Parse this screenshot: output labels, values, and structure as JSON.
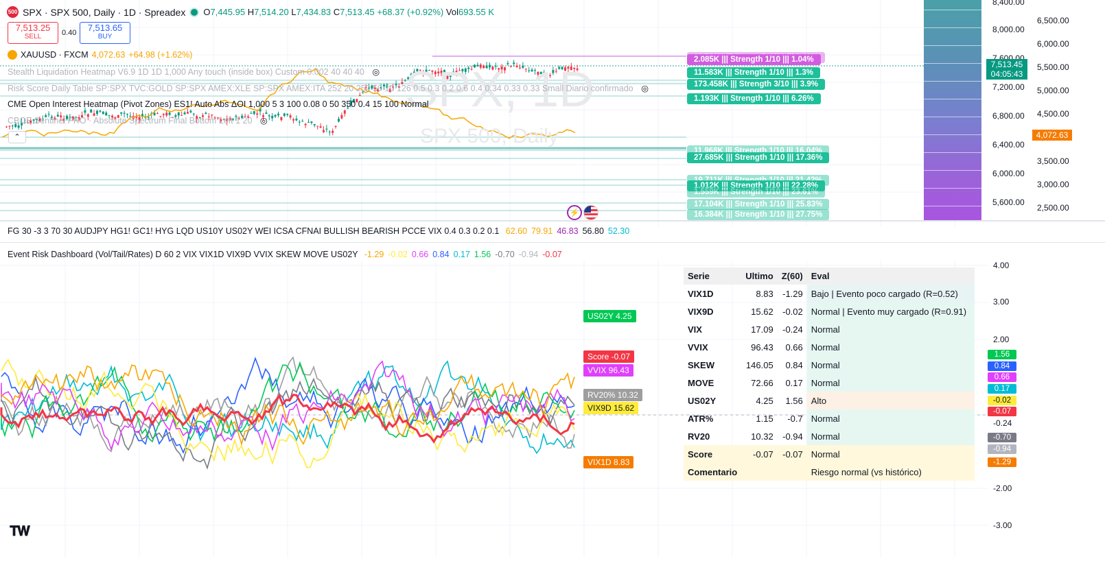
{
  "symbol": {
    "logo": "500",
    "title": "SPX · SPX 500, Daily · 1D · Spreadex",
    "ohlc": {
      "o_label": "O",
      "o": "7,445.95",
      "h_label": "H",
      "h": "7,514.20",
      "l_label": "L",
      "l": "7,434.83",
      "c_label": "C",
      "c": "7,513.45",
      "change": "+68.37 (+0.92%)",
      "vol_label": "Vol",
      "vol": "693.55 K"
    },
    "sell": {
      "price": "7,513.25",
      "label": "SELL"
    },
    "spread": "0.40",
    "buy": {
      "price": "7,513.65",
      "label": "BUY"
    }
  },
  "compare": {
    "name": "XAUUSD · FXCM",
    "value": "4,072.63",
    "change": "+64.98 (+1.62%)"
  },
  "indicators": [
    "Stealth Liquidation Heatmap V6.9 1D 1D 1,000 Any touch (inside box) Custom 0.002 40 40 40",
    "Risk Score Daily Table SP:SPX TVC:GOLD SP:SPX AMEX:XLE SP:SPX AMEX:ITA 252 20 252 50 10 126 0.5 0.3 0.2 0.6 0.4 0.34 0.33 0.33 Small Diario confirmado",
    "CME Open Interest Heatmap (Pivot Zones) ES1! Auto Abs ΔOI 1,000 5 3 100 0.08 0 50 350 0.4 15 100 Normal",
    "CBOE Sentinel PRO · Absolute Spectrum Final Bottom Left 1 20"
  ],
  "watermark": {
    "big": "SPX, 1D",
    "small": "SPX 500, Daily"
  },
  "oi_boxes": [
    {
      "text": "13.726K  |||  Strength 1/10  |||  1.48%",
      "color": "#d25ce0",
      "faded": true
    },
    {
      "text": "2.085K  |||  Strength 1/10  |||  1.04%",
      "color": "#d25ce0",
      "faded": false
    },
    {
      "text": "11.583K  |||  Strength 1/10  |||  1.3%",
      "color": "#1fbf9a",
      "faded": false
    },
    {
      "text": "173.458K  |||  Strength 3/10  |||  3.9%",
      "color": "#1fbf9a",
      "faded": false
    },
    {
      "text": "1.193K  |||  Strength 1/10  |||  6.26%",
      "color": "#1fbf9a",
      "faded": false
    },
    {
      "text": "11.968K  |||  Strength 1/10  |||  16.04%",
      "color": "#1fbf9a",
      "faded": true
    },
    {
      "text": "27.685K  |||  Strength 1/10  |||  17.36%",
      "color": "#1fbf9a",
      "faded": false
    },
    {
      "text": "19.711K  |||  Strength 1/10  |||  21.42%",
      "color": "#1fbf9a",
      "faded": true
    },
    {
      "text": "1.012K  |||  Strength 1/10  |||  22.28%",
      "color": "#1fbf9a",
      "faded": false
    },
    {
      "text": "1.559K  |||  Strength 1/10  |||  23.61%",
      "color": "#1fbf9a",
      "faded": true
    },
    {
      "text": "17.104K  |||  Strength 1/10  |||  25.83%",
      "color": "#1fbf9a",
      "faded": true
    },
    {
      "text": "16.384K  |||  Strength 1/10  |||  27.75%",
      "color": "#1fbf9a",
      "faded": true
    }
  ],
  "price_axis_left": [
    "8,400.00",
    "8,000.00",
    "7,600.00",
    "7,200.00",
    "6,800.00",
    "6,400.00",
    "6,000.00",
    "5,600.00"
  ],
  "price_axis_right": [
    "6,500.00",
    "6,000.00",
    "5,500.00",
    "5,000.00",
    "4,500.00",
    "4,000.00",
    "3,500.00",
    "3,000.00",
    "2,500.00"
  ],
  "last_price": {
    "value": "7,513.45",
    "countdown": "04:05:43"
  },
  "gold_price_tag": "4,072.63",
  "fg_legend": {
    "text": "FG 30 -3 3 70 30 AUDJPY HG1! GC1! HYG LQD US10Y US02Y WEI ICSA CFNAI BULLISH BEARISH PCCE VIX 0.4 0.3 0.2 0.1",
    "values": [
      {
        "v": "62.60",
        "color": "#f7a600"
      },
      {
        "v": "79.91",
        "color": "#f7a600"
      },
      {
        "v": "46.83",
        "color": "#9c27b0"
      },
      {
        "v": "56.80",
        "color": "#131722"
      },
      {
        "v": "52.30",
        "color": "#00bcd4"
      }
    ]
  },
  "erd_legend": {
    "text": "Event Risk Dashboard (Vol/Tail/Rates) D 60 2 VIX VIX1D VIX9D VVIX SKEW MOVE US02Y",
    "values": [
      {
        "v": "-1.29",
        "color": "#f7a600"
      },
      {
        "v": "-0.02",
        "color": "#ffeb3b"
      },
      {
        "v": "0.66",
        "color": "#e040fb"
      },
      {
        "v": "0.84",
        "color": "#2962ff"
      },
      {
        "v": "0.17",
        "color": "#00bcd4"
      },
      {
        "v": "1.56",
        "color": "#00c853"
      },
      {
        "v": "-0.70",
        "color": "#787b86"
      },
      {
        "v": "-0.94",
        "color": "#b2b5be"
      },
      {
        "v": "-0.07",
        "color": "#f23645"
      }
    ]
  },
  "lower_axis": [
    "4.00",
    "3.00",
    "2.00",
    "-0.24",
    "-2.00",
    "-3.00"
  ],
  "lower_scale_tags": [
    {
      "v": "1.56",
      "color": "#00c853"
    },
    {
      "v": "0.84",
      "color": "#2962ff"
    },
    {
      "v": "0.66",
      "color": "#e040fb"
    },
    {
      "v": "0.17",
      "color": "#00bcd4"
    },
    {
      "v": "-0.02",
      "color": "#ffeb3b",
      "text_color": "#131722"
    },
    {
      "v": "-0.07",
      "color": "#f23645"
    },
    {
      "v": "-0.70",
      "color": "#787b86"
    },
    {
      "v": "-0.94",
      "color": "#b2b5be"
    },
    {
      "v": "-1.29",
      "color": "#f57c00"
    }
  ],
  "series_tags": [
    {
      "text": "US02Y 4.25",
      "color": "#00c853"
    },
    {
      "text": "Score -0.07",
      "color": "#f23645"
    },
    {
      "text": "VVIX 96.43",
      "color": "#e040fb"
    },
    {
      "text": "RV20% 10.32",
      "color": "#9e9e9e"
    },
    {
      "text": "VIX9D 15.62",
      "color": "#ffeb3b"
    },
    {
      "text": "VIX1D 8.83",
      "color": "#f57c00"
    }
  ],
  "risk_table": {
    "headers": [
      "Serie",
      "Ultimo",
      "Z(60)",
      "Eval"
    ],
    "rows": [
      {
        "serie": "VIX1D",
        "ultimo": "8.83",
        "z": "-1.29",
        "eval": "Bajo | Evento poco cargado (R=0.52)",
        "cls": "ev-low"
      },
      {
        "serie": "VIX9D",
        "ultimo": "15.62",
        "z": "-0.02",
        "eval": "Normal | Evento muy cargado (R=0.91)",
        "cls": "ev-norm"
      },
      {
        "serie": "VIX",
        "ultimo": "17.09",
        "z": "-0.24",
        "eval": "Normal",
        "cls": "ev-norm"
      },
      {
        "serie": "VVIX",
        "ultimo": "96.43",
        "z": "0.66",
        "eval": "Normal",
        "cls": "ev-norm"
      },
      {
        "serie": "SKEW",
        "ultimo": "146.05",
        "z": "0.84",
        "eval": "Normal",
        "cls": "ev-norm"
      },
      {
        "serie": "MOVE",
        "ultimo": "72.66",
        "z": "0.17",
        "eval": "Normal",
        "cls": "ev-norm"
      },
      {
        "serie": "US02Y",
        "ultimo": "4.25",
        "z": "1.56",
        "eval": "Alto",
        "cls": "ev-high"
      },
      {
        "serie": "ATR%",
        "ultimo": "1.15",
        "z": "-0.7",
        "eval": "Normal",
        "cls": "ev-norm"
      },
      {
        "serie": "RV20",
        "ultimo": "10.32",
        "z": "-0.94",
        "eval": "Normal",
        "cls": "ev-norm"
      },
      {
        "serie": "Score",
        "ultimo": "-0.07",
        "z": "-0.07",
        "eval": "Normal",
        "cls": "ev-score"
      }
    ],
    "comment_label": "Comentario",
    "comment": "Riesgo normal (vs histórico)"
  },
  "colors": {
    "up": "#089981",
    "down": "#f23645",
    "gold_line": "#f7a600",
    "accent": "#2962ff"
  },
  "icons": [
    "eye-off-icon",
    "collapse-up-icon",
    "tradingview-logo-icon",
    "flash-icon",
    "us-flag-icon"
  ]
}
